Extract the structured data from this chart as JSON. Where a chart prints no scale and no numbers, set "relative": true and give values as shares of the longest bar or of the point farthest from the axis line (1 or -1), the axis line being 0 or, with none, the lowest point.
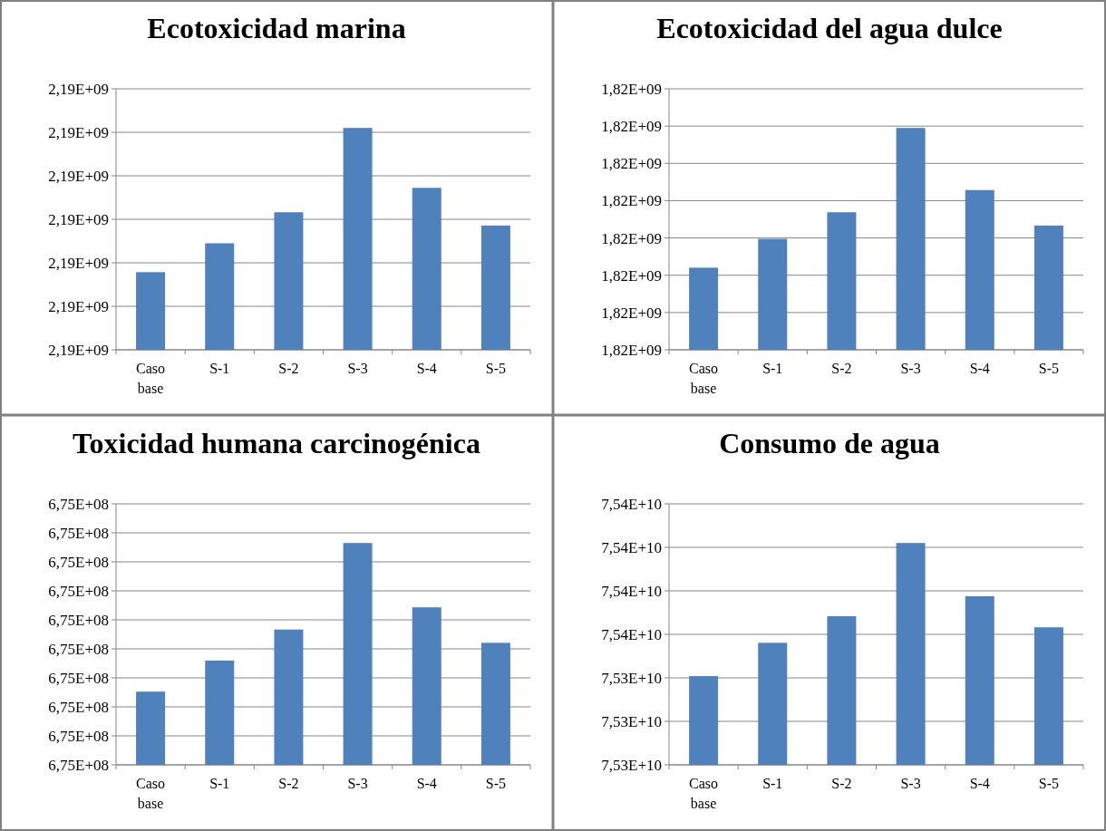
{
  "chart_data": [
    {
      "type": "bar",
      "title": "Ecotoxicidad marina",
      "categories": [
        "Caso base",
        "S-1",
        "S-2",
        "S-3",
        "S-4",
        "S-5"
      ],
      "values": [
        0.35,
        0.48,
        0.62,
        1,
        0.73,
        0.56
      ],
      "color": "#4f81bd",
      "relative": true,
      "annotations": [
        "2,19E+09",
        "2,19E+09",
        "2,19E+09",
        "2,19E+09",
        "2,19E+09",
        "2,19E+09",
        "2,19E+09"
      ],
      "grid": "y"
    },
    {
      "type": "bar",
      "title": "Ecotoxicidad del agua dulce",
      "categories": [
        "Caso base",
        "S-1",
        "S-2",
        "S-3",
        "S-4",
        "S-5"
      ],
      "values": [
        0.37,
        0.5,
        0.62,
        1,
        0.72,
        0.56
      ],
      "color": "#4f81bd",
      "relative": true,
      "annotations": [
        "1,82E+09",
        "1,82E+09",
        "1,82E+09",
        "1,82E+09",
        "1,82E+09",
        "1,82E+09",
        "1,82E+09",
        "1,82E+09"
      ],
      "grid": "y"
    },
    {
      "type": "bar",
      "title": "Toxicidad humana carcinogénica",
      "categories": [
        "Caso base",
        "S-1",
        "S-2",
        "S-3",
        "S-4",
        "S-5"
      ],
      "values": [
        0.33,
        0.47,
        0.61,
        1,
        0.71,
        0.55
      ],
      "color": "#4f81bd",
      "relative": true,
      "annotations": [
        "6,75E+08",
        "6,75E+08",
        "6,75E+08",
        "6,75E+08",
        "6,75E+08",
        "6,75E+08",
        "6,75E+08",
        "6,75E+08",
        "6,75E+08",
        "6,75E+08"
      ],
      "grid": "y"
    },
    {
      "type": "bar",
      "title": "Consumo de agua",
      "categories": [
        "Caso base",
        "S-1",
        "S-2",
        "S-3",
        "S-4",
        "S-5"
      ],
      "values": [
        0.4,
        0.55,
        0.67,
        1,
        0.76,
        0.62
      ],
      "color": "#4f81bd",
      "relative": true,
      "annotations": [
        "7,53E+10",
        "7,53E+10",
        "7,53E+10",
        "7,54E+10",
        "7,54E+10",
        "7,54E+10",
        "7,54E+10"
      ],
      "grid": "y"
    }
  ]
}
